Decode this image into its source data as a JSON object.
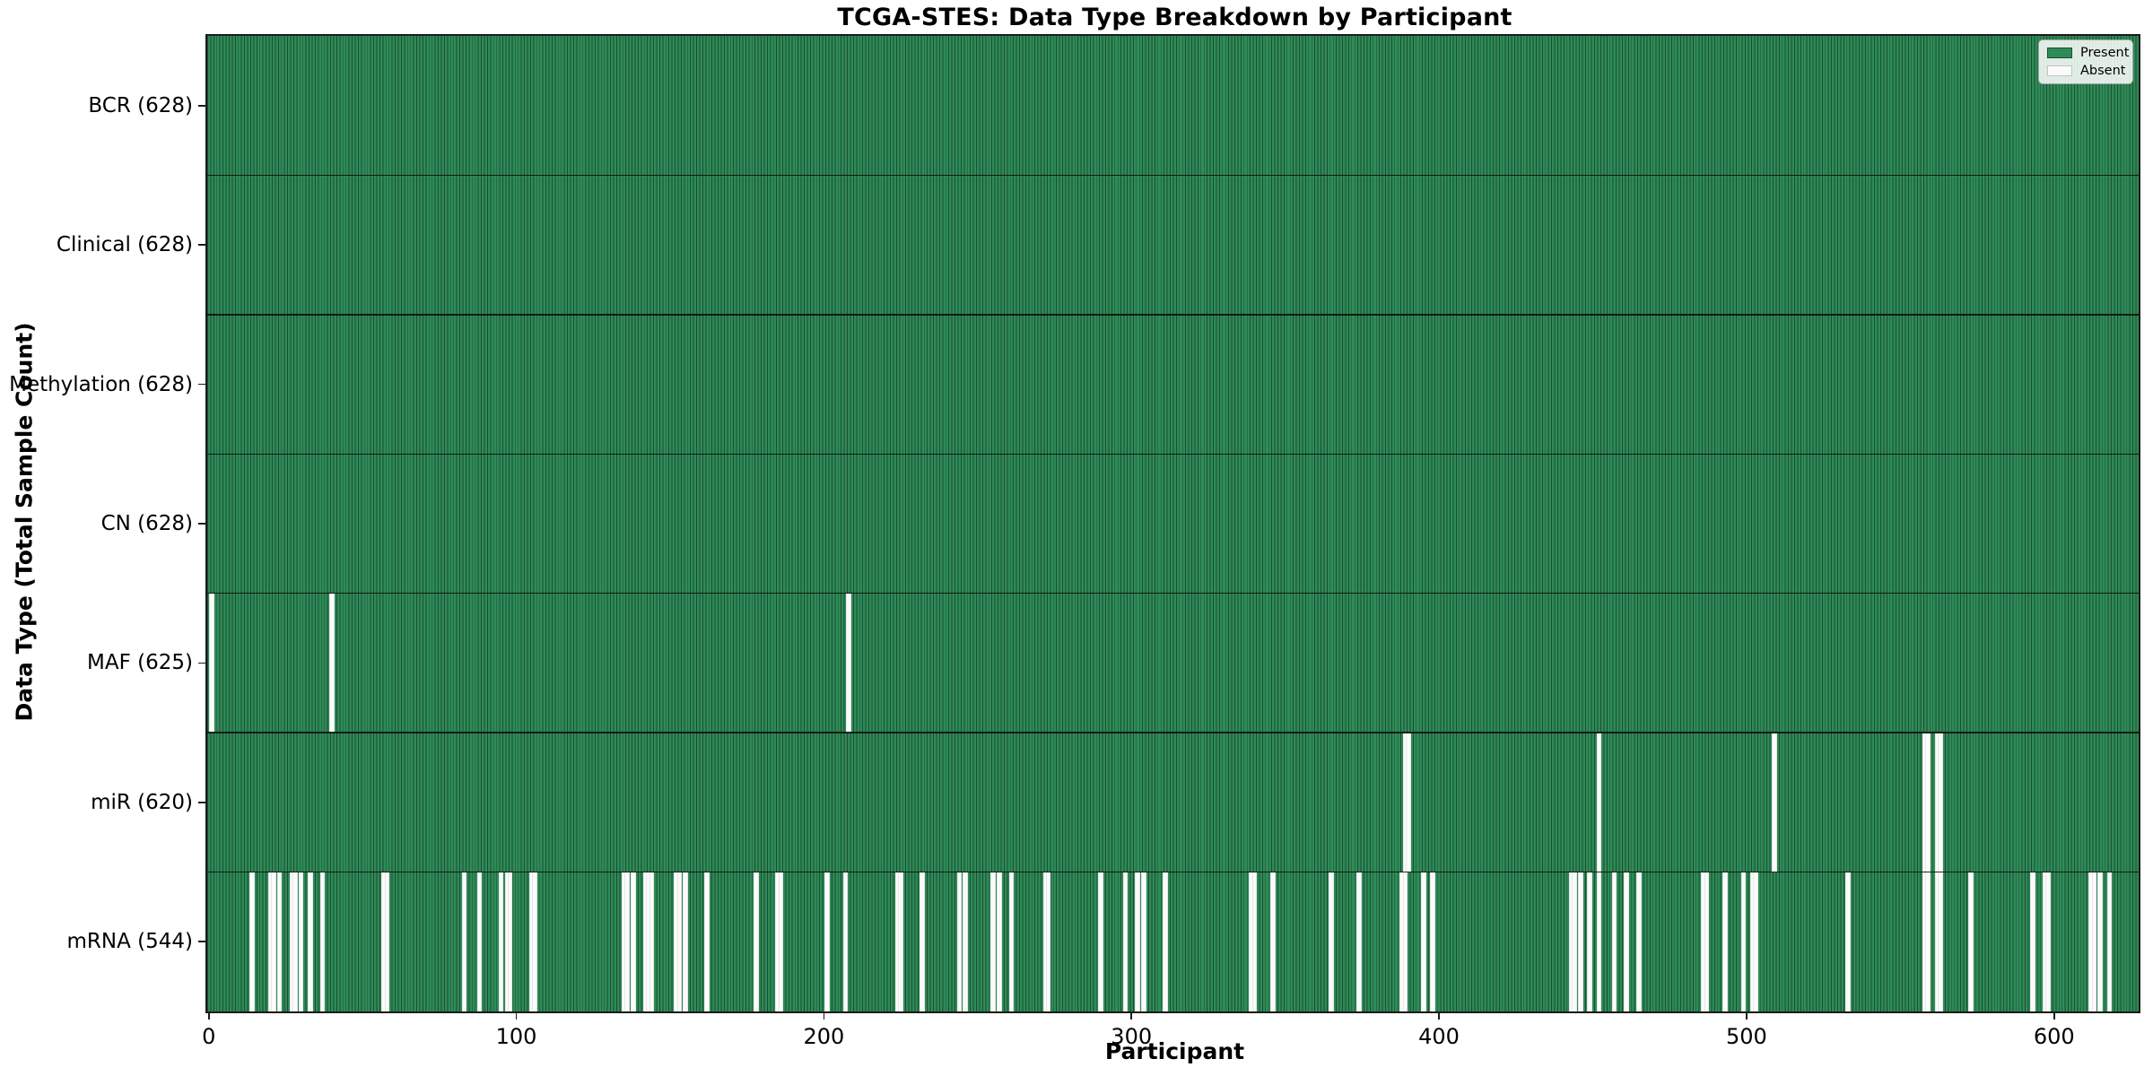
{
  "chart_data": {
    "type": "heatmap",
    "title": "TCGA-STES: Data Type Breakdown by Participant",
    "xlabel": "Participant",
    "ylabel": "Data Type (Total Sample Count)",
    "n_participants": 628,
    "xlim": [
      0,
      628
    ],
    "x_ticks": [
      0,
      100,
      200,
      300,
      400,
      500,
      600
    ],
    "grid": false,
    "legend_position": "upper right",
    "legend": [
      {
        "label": "Present",
        "color": "#2e8b57"
      },
      {
        "label": "Absent",
        "color": "#fbfbfb"
      }
    ],
    "colors": {
      "present": "#2e8b57",
      "present_edge": "#1b4d33",
      "absent": "#fbfbfb",
      "row_divider": "#111111"
    },
    "rows": [
      {
        "data_type": "BCR",
        "label": "BCR (628)",
        "present_count": 628,
        "absent_participants": []
      },
      {
        "data_type": "Clinical",
        "label": "Clinical (628)",
        "present_count": 628,
        "absent_participants": []
      },
      {
        "data_type": "Methylation",
        "label": "Methylation (628)",
        "present_count": 628,
        "absent_participants": []
      },
      {
        "data_type": "CN",
        "label": "CN (628)",
        "present_count": 628,
        "absent_participants": []
      },
      {
        "data_type": "MAF",
        "label": "MAF (625)",
        "present_count": 625,
        "absent_participants": [
          1,
          40,
          208
        ]
      },
      {
        "data_type": "miR",
        "label": "miR (620)",
        "present_count": 620,
        "absent_participants": [
          389,
          390,
          452,
          509,
          558,
          559,
          562,
          563
        ]
      },
      {
        "data_type": "mRNA",
        "label": "mRNA (544)",
        "present_count": 544,
        "absent_participants": [
          14,
          20,
          21,
          23,
          27,
          28,
          30,
          33,
          37,
          57,
          58,
          83,
          88,
          95,
          97,
          98,
          105,
          106,
          135,
          136,
          138,
          142,
          143,
          144,
          152,
          153,
          155,
          162,
          178,
          185,
          186,
          201,
          207,
          224,
          225,
          232,
          244,
          246,
          255,
          257,
          261,
          272,
          273,
          290,
          298,
          302,
          304,
          311,
          339,
          340,
          346,
          365,
          374,
          388,
          389,
          395,
          398,
          443,
          444,
          446,
          449,
          452,
          457,
          461,
          465,
          486,
          487,
          493,
          499,
          502,
          503,
          533,
          558,
          559,
          562,
          563,
          573,
          593,
          597,
          598,
          612,
          613,
          615,
          618
        ]
      }
    ]
  }
}
